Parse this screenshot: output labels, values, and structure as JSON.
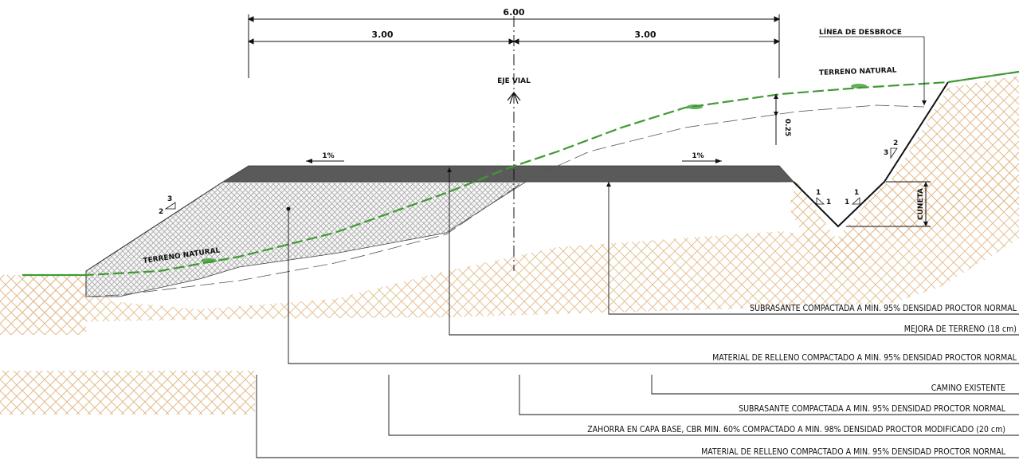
{
  "dimensions": {
    "total": "6.00",
    "left": "3.00",
    "right": "3.00",
    "depth": "0.25"
  },
  "labels": {
    "desbroce": "LÍNEA DE DESBROCE",
    "terreno_right": "TERRENO NATURAL",
    "terreno_left": "TERRENO NATURAL",
    "eje": "EJE VIAL",
    "cuneta": "CUNETA",
    "slope_left_pct": "1%",
    "slope_right_pct": "1%"
  },
  "slopes": {
    "left_fill": {
      "rise": "3",
      "run": "2"
    },
    "right_cut": {
      "rise": "2",
      "run": "3"
    },
    "ditch_left": {
      "top": "1",
      "side": "1"
    },
    "ditch_right": {
      "top": "1",
      "side": "1"
    }
  },
  "callouts_upper": [
    "SUBRASANTE COMPACTADA A MIN. 95% DENSIDAD PROCTOR NORMAL",
    "MEJORA DE TERRENO (18 cm)",
    "MATERIAL DE RELLENO COMPACTADO A MIN. 95% DENSIDAD PROCTOR NORMAL"
  ],
  "callouts_lower": [
    "CAMINO EXISTENTE",
    "SUBRASANTE COMPACTADA A MIN. 95% DENSIDAD PROCTOR NORMAL",
    "ZAHORRA EN CAPA BASE, CBR MIN. 60% COMPACTADO A MIN. 98% DENSIDAD PROCTOR MODIFICADO (20 cm)",
    "MATERIAL DE RELLENO COMPACTADO A MIN. 95% DENSIDAD PROCTOR NORMAL"
  ],
  "colors": {
    "ground": "#e9c9a0",
    "terrain_line": "#3f9a32",
    "pavement": "#5a5a5a",
    "fill_hatch": "#9a9a9a"
  }
}
